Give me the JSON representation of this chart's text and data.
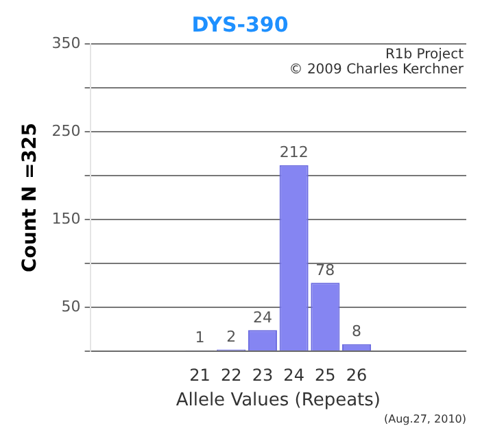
{
  "chart_data": {
    "type": "bar",
    "title": "DYS-390",
    "xlabel": "Allele Values (Repeats)",
    "ylabel": "Count N =325",
    "categories": [
      null,
      null,
      null,
      "21",
      "22",
      "23",
      "24",
      "25",
      "26",
      null,
      null,
      null
    ],
    "values": [
      null,
      null,
      null,
      1,
      2,
      24,
      212,
      78,
      8,
      null,
      null,
      null
    ],
    "color": "#8585f2",
    "ylim": [
      0,
      350
    ],
    "yticks": [
      {
        "value": 0,
        "label": null
      },
      50,
      {
        "value": 100,
        "label": null
      },
      150,
      {
        "value": 200,
        "label": null
      },
      250,
      {
        "value": 300,
        "label": null
      },
      350
    ],
    "grid": "y",
    "data_labels": true,
    "annotations": [
      "R1b Project",
      "© 2009 Charles Kerchner",
      "(Aug.27, 2010)"
    ]
  }
}
